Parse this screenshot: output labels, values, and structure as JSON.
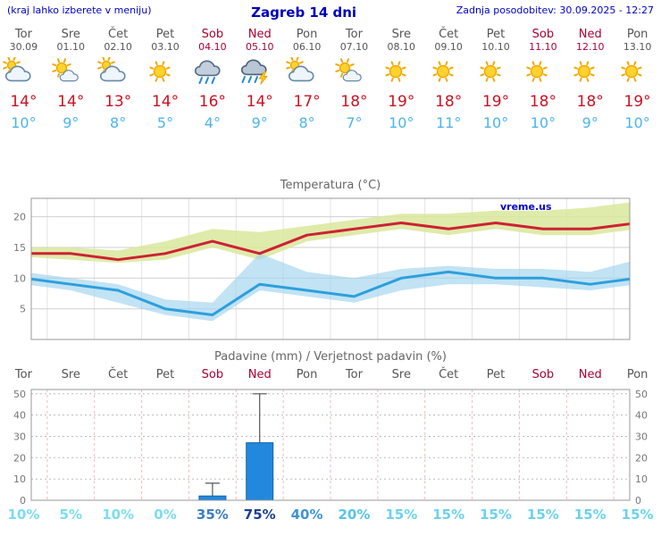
{
  "header": {
    "note": "(kraj lahko izberete v meniju)",
    "title": "Zagreb 14 dni",
    "updated": "Zadnja posodobitev: 30.09.2025 - 12:27"
  },
  "watermark": "vreme.us",
  "colors": {
    "tmax_line": "#cc2233",
    "tmin_line": "#2d9fdc",
    "tmax_band": "#d9e79b",
    "tmin_band": "#9fd4ee",
    "bar_fill": "#2288dd",
    "bar_stroke": "#1266aa",
    "weekend": "#aa0033",
    "weekday": "#555555",
    "header_blue": "#0000cc"
  },
  "days": [
    {
      "name": "Tor",
      "date": "30.09",
      "weekend": false,
      "icon": "mostly-cloudy",
      "tmax": "14°",
      "tmin": "10°",
      "pop": "10%",
      "pop_color": "#7bdcf2"
    },
    {
      "name": "Sre",
      "date": "01.10",
      "weekend": false,
      "icon": "partly-sunny",
      "tmax": "14°",
      "tmin": "9°",
      "pop": "5%",
      "pop_color": "#7bdcf2"
    },
    {
      "name": "Čet",
      "date": "02.10",
      "weekend": false,
      "icon": "mostly-cloudy",
      "tmax": "13°",
      "tmin": "8°",
      "pop": "10%",
      "pop_color": "#7bdcf2"
    },
    {
      "name": "Pet",
      "date": "03.10",
      "weekend": false,
      "icon": "sunny",
      "tmax": "14°",
      "tmin": "5°",
      "pop": "0%",
      "pop_color": "#7bdcf2"
    },
    {
      "name": "Sob",
      "date": "04.10",
      "weekend": true,
      "icon": "rain",
      "tmax": "16°",
      "tmin": "4°",
      "pop": "35%",
      "pop_color": "#3a7ec2"
    },
    {
      "name": "Ned",
      "date": "05.10",
      "weekend": true,
      "icon": "storm",
      "tmax": "14°",
      "tmin": "9°",
      "pop": "75%",
      "pop_color": "#1d3e8f"
    },
    {
      "name": "Pon",
      "date": "06.10",
      "weekend": false,
      "icon": "mostly-cloudy",
      "tmax": "17°",
      "tmin": "8°",
      "pop": "40%",
      "pop_color": "#3f93d6"
    },
    {
      "name": "Tor",
      "date": "07.10",
      "weekend": false,
      "icon": "partly-sunny",
      "tmax": "18°",
      "tmin": "7°",
      "pop": "20%",
      "pop_color": "#57c3ea"
    },
    {
      "name": "Sre",
      "date": "08.10",
      "weekend": false,
      "icon": "sunny",
      "tmax": "19°",
      "tmin": "10°",
      "pop": "15%",
      "pop_color": "#6ad2ee"
    },
    {
      "name": "Čet",
      "date": "09.10",
      "weekend": false,
      "icon": "sunny",
      "tmax": "18°",
      "tmin": "11°",
      "pop": "15%",
      "pop_color": "#6ad2ee"
    },
    {
      "name": "Pet",
      "date": "10.10",
      "weekend": false,
      "icon": "sunny",
      "tmax": "19°",
      "tmin": "10°",
      "pop": "15%",
      "pop_color": "#6ad2ee"
    },
    {
      "name": "Sob",
      "date": "11.10",
      "weekend": true,
      "icon": "sunny",
      "tmax": "18°",
      "tmin": "10°",
      "pop": "15%",
      "pop_color": "#6ad2ee"
    },
    {
      "name": "Ned",
      "date": "12.10",
      "weekend": true,
      "icon": "sunny",
      "tmax": "18°",
      "tmin": "9°",
      "pop": "15%",
      "pop_color": "#6ad2ee"
    },
    {
      "name": "Pon",
      "date": "13.10",
      "weekend": false,
      "icon": "sunny",
      "tmax": "19°",
      "tmin": "10°",
      "pop": "15%",
      "pop_color": "#6ad2ee"
    }
  ],
  "chart_data": [
    {
      "type": "line",
      "title": "Temperatura (°C)",
      "categories": [
        "Tor 30.09",
        "Sre 01.10",
        "Čet 02.10",
        "Pet 03.10",
        "Sob 04.10",
        "Ned 05.10",
        "Pon 06.10",
        "Tor 07.10",
        "Sre 08.10",
        "Čet 09.10",
        "Pet 10.10",
        "Sob 11.10",
        "Ned 12.10",
        "Pon 13.10"
      ],
      "series": [
        {
          "name": "tmax",
          "values": [
            14,
            14,
            13,
            14,
            16,
            14,
            17,
            18,
            19,
            18,
            19,
            18,
            18,
            19
          ]
        },
        {
          "name": "tmax_band_hi",
          "values": [
            15,
            15,
            14.5,
            16,
            18,
            17.5,
            18.5,
            19.5,
            20.5,
            20.5,
            21,
            21,
            21.5,
            22.5
          ]
        },
        {
          "name": "tmax_band_lo",
          "values": [
            13.5,
            13,
            12.5,
            13,
            15,
            13,
            16,
            17,
            18,
            17,
            18,
            17,
            17,
            18
          ]
        },
        {
          "name": "tmin",
          "values": [
            10,
            9,
            8,
            5,
            4,
            9,
            8,
            7,
            10,
            11,
            10,
            10,
            9,
            10
          ]
        },
        {
          "name": "tmin_band_hi",
          "values": [
            11,
            10,
            9,
            6.5,
            6,
            14,
            11,
            10,
            11.5,
            12,
            11.5,
            11.5,
            11,
            13
          ]
        },
        {
          "name": "tmin_band_lo",
          "values": [
            9,
            8,
            6,
            4,
            3,
            8,
            7,
            6,
            8,
            9,
            9,
            8.5,
            8,
            9
          ]
        }
      ],
      "ylim": [
        0,
        23
      ],
      "yticks": [
        5,
        10,
        15,
        20
      ],
      "grid": true,
      "legend": "none"
    },
    {
      "type": "bar",
      "title": "Padavine (mm) / Verjetnost padavin (%)",
      "categories": [
        "Tor",
        "Sre",
        "Čet",
        "Pet",
        "Sob",
        "Ned",
        "Pon",
        "Tor",
        "Sre",
        "Čet",
        "Pet",
        "Sob",
        "Ned",
        "Pon"
      ],
      "values": [
        0,
        0,
        0,
        0,
        2,
        27,
        0,
        0,
        0,
        0,
        0,
        0,
        0,
        0
      ],
      "whisker_hi": [
        null,
        null,
        null,
        null,
        8,
        50,
        null,
        null,
        null,
        null,
        null,
        null,
        null,
        null
      ],
      "whisker_lo": [
        null,
        null,
        null,
        null,
        0,
        2,
        null,
        null,
        null,
        null,
        null,
        null,
        null,
        null
      ],
      "probability": [
        "10%",
        "5%",
        "10%",
        "0%",
        "35%",
        "75%",
        "40%",
        "20%",
        "15%",
        "15%",
        "15%",
        "15%",
        "15%",
        "15%"
      ],
      "ylim": [
        0,
        52
      ],
      "yticks": [
        0,
        10,
        20,
        30,
        40,
        50
      ],
      "grid": true,
      "legend": "none"
    }
  ]
}
